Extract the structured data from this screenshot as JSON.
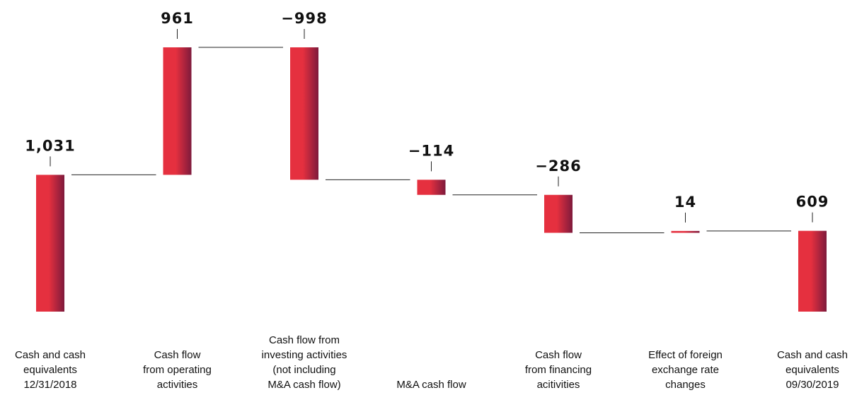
{
  "chart_data": {
    "type": "waterfall",
    "categories": [
      "Cash and cash\nequivalents\n12/31/2018",
      "Cash flow\nfrom operating\nactivities",
      "Cash flow from\ninvesting activities\n(not including\nM&A cash flow)",
      "M&A cash flow",
      "Cash flow\nfrom financing\nacitivities",
      "Effect of foreign\nexchange rate\nchanges",
      "Cash and cash\nequivalents\n09/30/2019"
    ],
    "values": [
      1031,
      961,
      -998,
      -114,
      -286,
      14,
      609
    ],
    "value_labels": [
      "1,031",
      "961",
      "−998",
      "−114",
      "−286",
      "14",
      "609"
    ],
    "is_total": [
      true,
      false,
      false,
      false,
      false,
      false,
      true
    ],
    "color": "#e5303f"
  }
}
